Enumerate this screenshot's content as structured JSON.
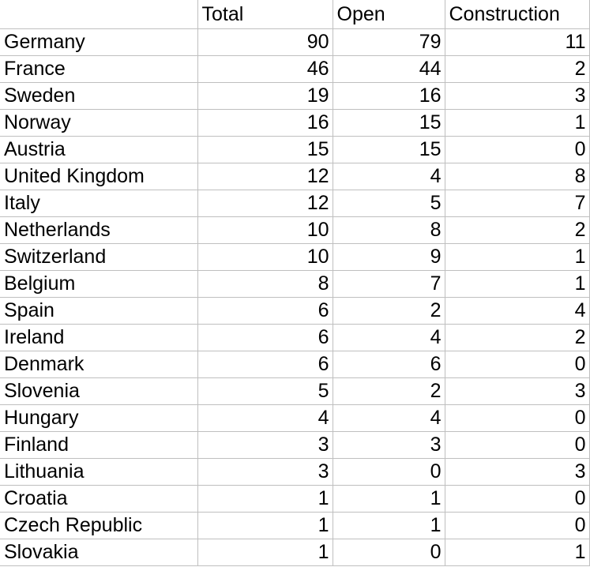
{
  "header": {
    "corner": "",
    "total": "Total",
    "open": "Open",
    "construction": "Construction"
  },
  "rows": [
    {
      "country": "Germany",
      "total": "90",
      "open": "79",
      "construction": "11"
    },
    {
      "country": "France",
      "total": "46",
      "open": "44",
      "construction": "2"
    },
    {
      "country": "Sweden",
      "total": "19",
      "open": "16",
      "construction": "3"
    },
    {
      "country": "Norway",
      "total": "16",
      "open": "15",
      "construction": "1"
    },
    {
      "country": "Austria",
      "total": "15",
      "open": "15",
      "construction": "0"
    },
    {
      "country": "United Kingdom",
      "total": "12",
      "open": "4",
      "construction": "8"
    },
    {
      "country": "Italy",
      "total": "12",
      "open": "5",
      "construction": "7"
    },
    {
      "country": "Netherlands",
      "total": "10",
      "open": "8",
      "construction": "2"
    },
    {
      "country": "Switzerland",
      "total": "10",
      "open": "9",
      "construction": "1"
    },
    {
      "country": "Belgium",
      "total": "8",
      "open": "7",
      "construction": "1"
    },
    {
      "country": "Spain",
      "total": "6",
      "open": "2",
      "construction": "4"
    },
    {
      "country": "Ireland",
      "total": "6",
      "open": "4",
      "construction": "2"
    },
    {
      "country": "Denmark",
      "total": "6",
      "open": "6",
      "construction": "0"
    },
    {
      "country": "Slovenia",
      "total": "5",
      "open": "2",
      "construction": "3"
    },
    {
      "country": "Hungary",
      "total": "4",
      "open": "4",
      "construction": "0"
    },
    {
      "country": "Finland",
      "total": "3",
      "open": "3",
      "construction": "0"
    },
    {
      "country": "Lithuania",
      "total": "3",
      "open": "0",
      "construction": "3"
    },
    {
      "country": "Croatia",
      "total": "1",
      "open": "1",
      "construction": "0"
    },
    {
      "country": "Czech Republic",
      "total": "1",
      "open": "1",
      "construction": "0"
    },
    {
      "country": "Slovakia",
      "total": "1",
      "open": "0",
      "construction": "1"
    }
  ],
  "colors": {
    "gridline": "#bfbfbf",
    "text": "#000000",
    "background": "#ffffff"
  }
}
